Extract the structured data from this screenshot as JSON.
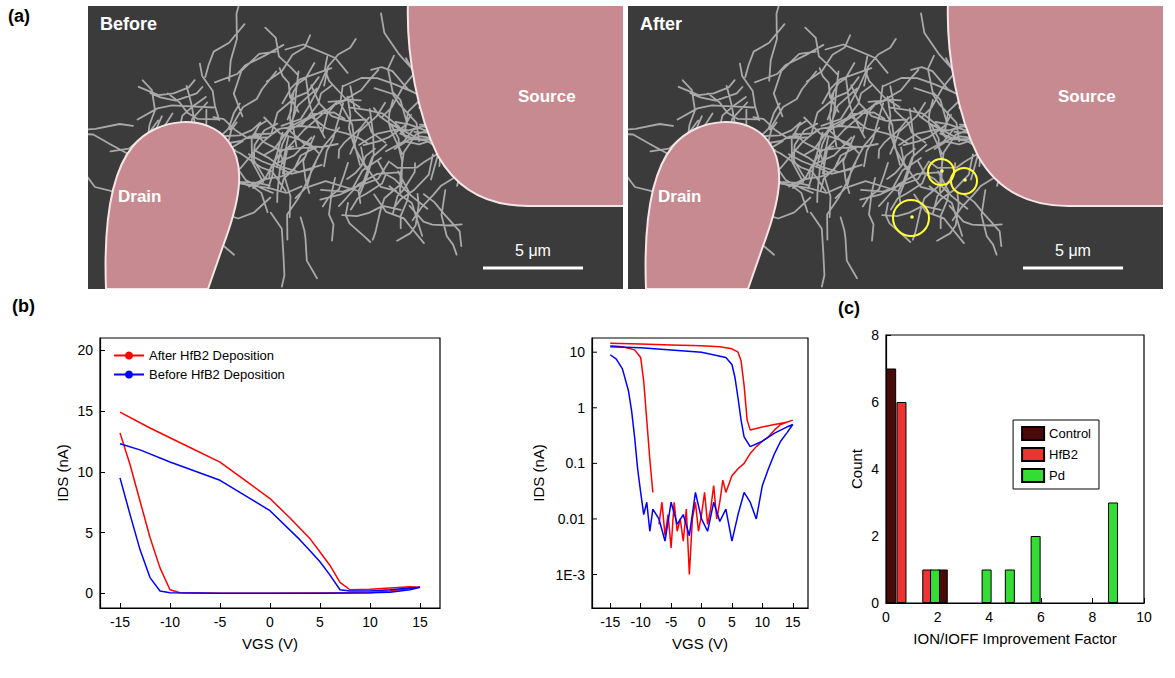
{
  "micrographs": {
    "panel": "(a)",
    "images": [
      {
        "title": "Before",
        "labels": [
          "Drain",
          "Source"
        ],
        "scale_bar": "5 μm"
      },
      {
        "title": "After",
        "labels": [
          "Drain",
          "Source"
        ],
        "scale_bar": "5 μm"
      }
    ]
  },
  "chart_data": [
    {
      "panel": "(b)",
      "type": "line",
      "xlabel": "VGS (V)",
      "ylabel": "IDS (nA)",
      "xlim": [
        -17,
        17
      ],
      "xticks": [
        -15,
        -10,
        -5,
        0,
        5,
        10,
        15
      ],
      "ylim": [
        -1.2,
        21
      ],
      "yticks": [
        0,
        5,
        10,
        15,
        20
      ],
      "grid": false,
      "legend": "upper left",
      "series": [
        {
          "name": "After HfB2 Deposition",
          "color": "#ff0000",
          "x": [
            -15,
            -14,
            -13,
            -12,
            -11,
            -10,
            -9,
            -5,
            0,
            5,
            10,
            12,
            14,
            15,
            14,
            12,
            10,
            8,
            7,
            6,
            5,
            4,
            2,
            0,
            -2,
            -5,
            -8,
            -10,
            -12,
            -15
          ],
          "values": [
            13.2,
            10.6,
            7.6,
            4.6,
            2.1,
            0.3,
            0.05,
            0.02,
            0.02,
            0.03,
            0.05,
            0.2,
            0.4,
            0.5,
            0.55,
            0.45,
            0.35,
            0.3,
            0.9,
            2.3,
            3.4,
            4.5,
            6.2,
            7.8,
            9.0,
            10.8,
            12.0,
            12.8,
            13.6,
            14.9
          ]
        },
        {
          "name": "Before HfB2 Deposition",
          "color": "#0000ff",
          "x": [
            -15,
            -14,
            -13,
            -12,
            -11,
            -10,
            -5,
            0,
            5,
            10,
            12,
            14,
            15,
            14,
            12,
            10,
            8,
            7,
            6,
            5,
            4,
            3,
            0,
            -5,
            -10,
            -13,
            -15
          ],
          "values": [
            9.5,
            6.5,
            3.6,
            1.3,
            0.2,
            0.05,
            0.02,
            0.02,
            0.02,
            0.05,
            0.1,
            0.3,
            0.5,
            0.45,
            0.3,
            0.2,
            0.2,
            0.3,
            1.5,
            2.6,
            3.5,
            4.4,
            6.8,
            9.3,
            10.8,
            11.8,
            12.3
          ]
        }
      ]
    },
    {
      "type": "line",
      "log": "y",
      "xlabel": "VGS (V)",
      "ylabel": "IDS (nA)",
      "xlim": [
        -18,
        17.5
      ],
      "xticks": [
        -15,
        -10,
        -5,
        0,
        5,
        10,
        15
      ],
      "ylim": [
        0.00025,
        18
      ],
      "yticks": [
        {
          "value": 0.001,
          "label": "1E-3"
        },
        0.01,
        0.1,
        1,
        10
      ],
      "grid": false,
      "series": [
        {
          "color": "#ff0000",
          "x": [
            -15,
            -13,
            -11,
            -10,
            -9.5,
            -9,
            -8.5,
            -8,
            -7.5,
            -7,
            -6.5,
            -6,
            -5.5,
            -5,
            -4.5,
            -4,
            -3.5,
            -3,
            -2.5,
            -2,
            -1.5,
            -1,
            -0.5,
            0,
            0.5,
            1,
            1.5,
            2,
            2.5,
            3,
            3.5,
            4,
            5,
            6,
            7,
            8,
            9,
            10,
            11,
            12,
            13,
            14,
            15,
            14,
            12,
            10,
            8,
            7.5,
            7,
            6.5,
            6,
            5,
            3,
            0,
            -5,
            -10,
            -15
          ],
          "values": [
            13,
            12.5,
            11,
            8,
            3,
            0.6,
            0.12,
            0.03,
            null,
            0.008,
            0.02,
            0.005,
            0.012,
            0.003,
            0.02,
            0.006,
            0.01,
            0.004,
            0.015,
            0.001,
            0.01,
            0.02,
            0.006,
            0.012,
            0.03,
            0.008,
            0.015,
            0.04,
            0.01,
            0.02,
            0.05,
            0.03,
            0.06,
            0.08,
            0.1,
            0.15,
            0.2,
            0.25,
            0.3,
            0.4,
            0.5,
            0.55,
            0.6,
            0.55,
            0.5,
            0.45,
            0.4,
            0.6,
            2.5,
            7,
            10,
            11.5,
            12.5,
            13,
            13.5,
            14,
            14.5
          ]
        },
        {
          "color": "#0000ff",
          "x": [
            -15,
            -14,
            -13,
            -12,
            -11.5,
            -11,
            -10.5,
            -10,
            -9.5,
            -9,
            -8.5,
            -8,
            -7,
            -6,
            -5,
            -4,
            -3,
            -2,
            -1,
            0,
            1,
            2,
            3,
            4,
            5,
            6,
            7,
            8,
            9,
            10,
            11,
            12,
            13,
            14,
            15,
            14,
            12,
            10,
            8,
            7,
            6.5,
            6,
            5.5,
            5,
            4,
            0,
            -5,
            -10,
            -15
          ],
          "values": [
            9,
            7.5,
            5,
            2,
            0.9,
            0.3,
            0.08,
            0.03,
            0.012,
            0.02,
            0.006,
            0.015,
            0.01,
            0.004,
            0.02,
            0.008,
            0.012,
            0.005,
            0.03,
            0.01,
            0.006,
            0.02,
            0.009,
            0.015,
            0.004,
            0.012,
            0.03,
            0.02,
            0.01,
            0.04,
            0.08,
            0.15,
            0.25,
            0.35,
            0.5,
            0.45,
            0.35,
            0.25,
            0.2,
            0.3,
            0.6,
            1.5,
            3.5,
            6,
            8,
            10,
            11,
            12,
            12.5
          ]
        }
      ]
    },
    {
      "panel": "(c)",
      "type": "bar",
      "xlabel": "ION/IOFF Improvement Factor",
      "ylabel": "Count",
      "xlim": [
        0,
        10
      ],
      "xticks": [
        0,
        2,
        4,
        6,
        8,
        10
      ],
      "ylim": [
        0,
        8
      ],
      "yticks": [
        0,
        2,
        4,
        6,
        8
      ],
      "grid": false,
      "legend": "right",
      "series": [
        {
          "name": "Control",
          "color": "#4a0a0a",
          "x": [
            0.2,
            2.2
          ],
          "values": [
            7,
            1
          ]
        },
        {
          "name": "HfB2",
          "color": "#ee3333",
          "x": [
            0.6,
            1.6
          ],
          "values": [
            6,
            1
          ]
        },
        {
          "name": "Pd",
          "color": "#33dd33",
          "x": [
            1.9,
            3.9,
            4.8,
            5.8,
            8.8
          ],
          "values": [
            1,
            1,
            1,
            2,
            3
          ]
        }
      ]
    }
  ]
}
